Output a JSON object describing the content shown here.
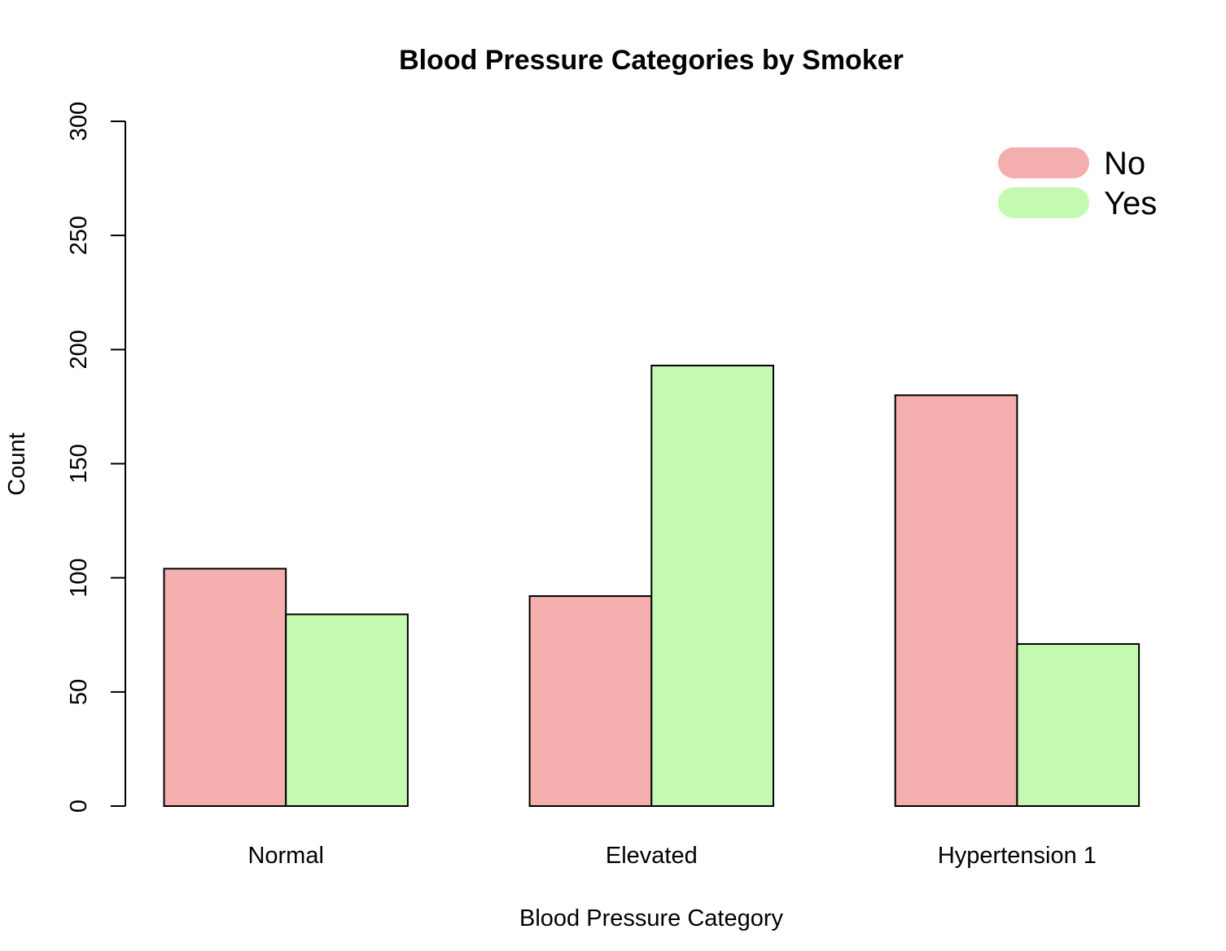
{
  "chart_data": {
    "type": "bar",
    "title": "Blood Pressure Categories by Smoker",
    "xlabel": "Blood Pressure Category",
    "ylabel": "Count",
    "ylim": [
      0,
      300
    ],
    "yticks": [
      0,
      50,
      100,
      150,
      200,
      250,
      300
    ],
    "categories": [
      "Normal",
      "Elevated",
      "Hypertension 1"
    ],
    "series": [
      {
        "name": "No",
        "values": [
          104,
          92,
          180
        ],
        "color": "#F4AEAE"
      },
      {
        "name": "Yes",
        "values": [
          84,
          193,
          71
        ],
        "color": "#C4F9B2"
      }
    ],
    "legend": {
      "position": "top-right"
    },
    "grid": false
  }
}
